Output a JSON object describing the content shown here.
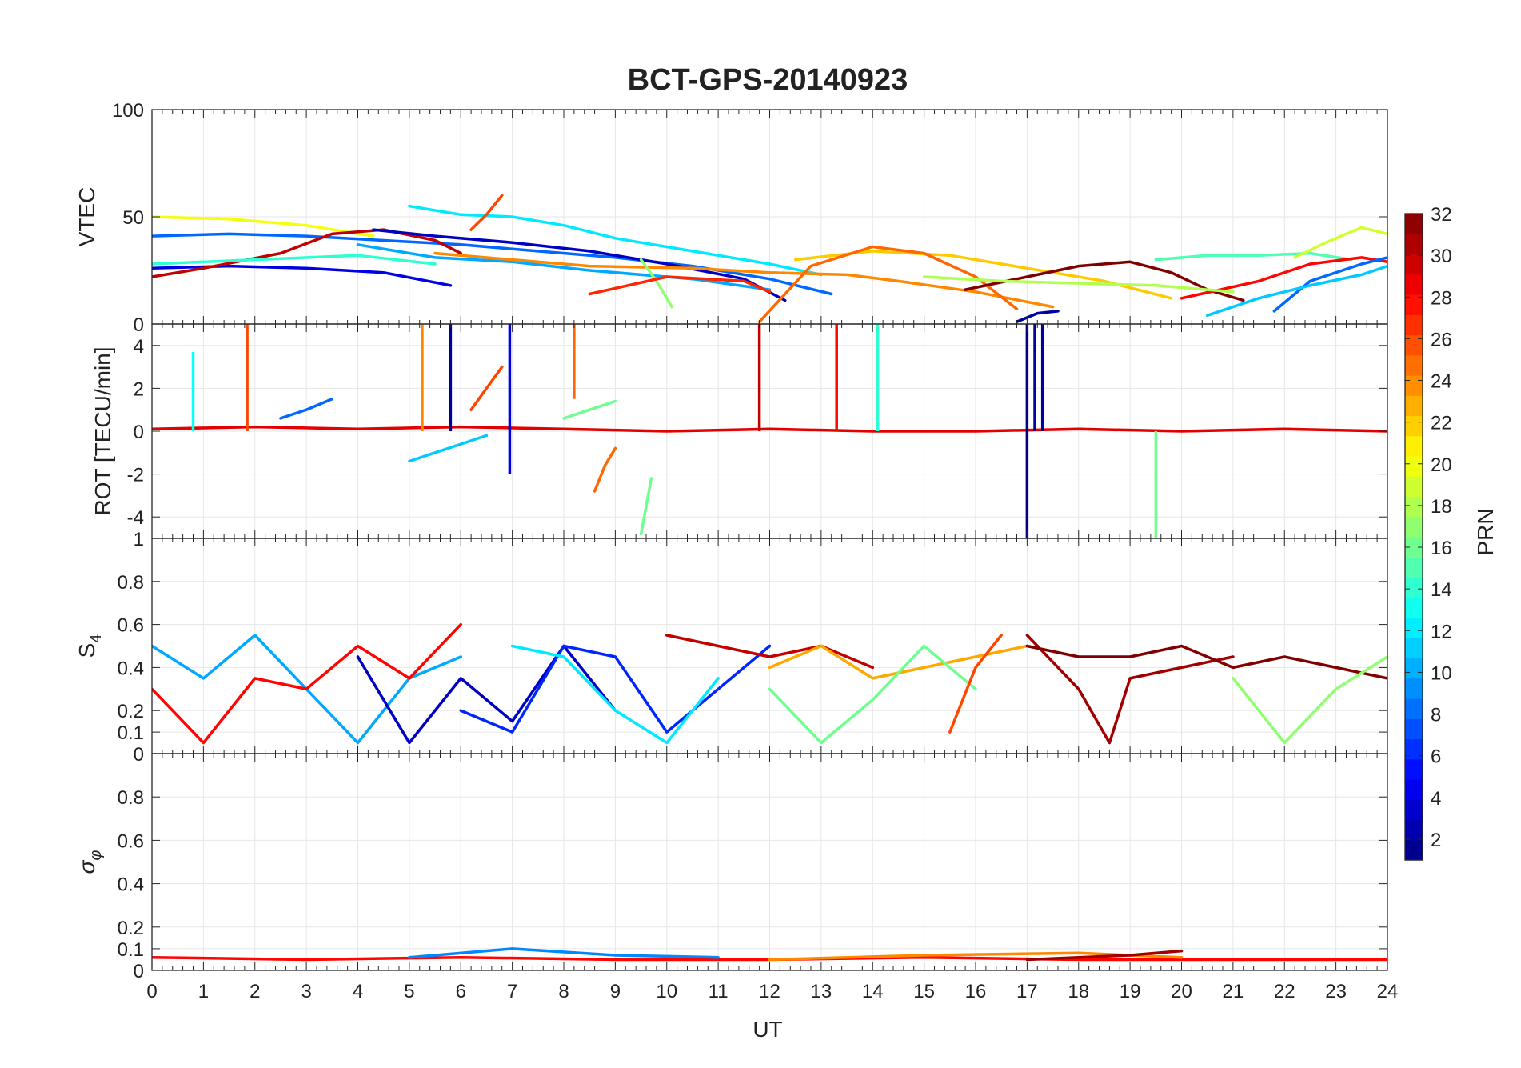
{
  "figure": {
    "title": "BCT-GPS-20140923",
    "xlabel": "UT",
    "x_ticks": [
      0,
      1,
      2,
      3,
      4,
      5,
      6,
      7,
      8,
      9,
      10,
      11,
      12,
      13,
      14,
      15,
      16,
      17,
      18,
      19,
      20,
      21,
      22,
      23,
      24
    ],
    "colorbar": {
      "label": "PRN",
      "ticks": [
        2,
        4,
        6,
        8,
        10,
        12,
        14,
        16,
        18,
        20,
        22,
        24,
        26,
        28,
        30,
        32
      ],
      "range": [
        1,
        32
      ],
      "colormap": "jet"
    }
  },
  "chart_data": [
    {
      "type": "line",
      "panel": "VTEC",
      "ylabel": "VTEC",
      "xlim": [
        0,
        24
      ],
      "ylim": [
        0,
        100
      ],
      "y_ticks": [
        0,
        50,
        100
      ],
      "grid": true,
      "series": [
        {
          "prn": 4,
          "x": [
            0.0,
            1.5,
            3.0,
            4.5,
            5.8
          ],
          "y": [
            26,
            27,
            26,
            24,
            18
          ]
        },
        {
          "prn": 8,
          "x": [
            0.0,
            1.5,
            3.0,
            4.5,
            6.0,
            7.5,
            9.0,
            10.5,
            12.0,
            13.2
          ],
          "y": [
            41,
            42,
            41,
            39,
            37,
            34,
            31,
            27,
            21,
            14
          ]
        },
        {
          "prn": 20,
          "x": [
            0.0,
            1.5,
            3.0,
            4.3
          ],
          "y": [
            50,
            49,
            46,
            41
          ]
        },
        {
          "prn": 12,
          "x": [
            5.0,
            6.0,
            7.0,
            8.0,
            9.0,
            10.5,
            12.0,
            13.0
          ],
          "y": [
            55,
            51,
            50,
            46,
            40,
            34,
            28,
            23
          ]
        },
        {
          "prn": 30,
          "x": [
            0.0,
            1.0,
            2.5,
            3.5,
            4.5,
            5.5,
            6.0
          ],
          "y": [
            22,
            26,
            33,
            42,
            44,
            39,
            33
          ]
        },
        {
          "prn": 26,
          "x": [
            6.2,
            6.5,
            6.8
          ],
          "y": [
            44,
            51,
            60
          ]
        },
        {
          "prn": 3,
          "x": [
            4.3,
            5.5,
            7.0,
            8.5,
            10.0,
            11.5,
            12.3
          ],
          "y": [
            44,
            41,
            38,
            34,
            28,
            21,
            11
          ]
        },
        {
          "prn": 10,
          "x": [
            4.0,
            5.5,
            7.0,
            8.5,
            10.5,
            12.0
          ],
          "y": [
            37,
            31,
            29,
            25,
            21,
            16
          ]
        },
        {
          "prn": 24,
          "x": [
            5.5,
            7.0,
            8.5,
            10.5,
            12.0,
            13.5,
            14.5,
            16.0,
            17.5
          ],
          "y": [
            33,
            30,
            27,
            26,
            24,
            23,
            20,
            15,
            8
          ]
        },
        {
          "prn": 22,
          "x": [
            12.5,
            14.0,
            15.5,
            17.0,
            18.5,
            19.8
          ],
          "y": [
            30,
            34,
            32,
            26,
            20,
            12
          ]
        },
        {
          "prn": 25,
          "x": [
            11.8,
            12.8,
            14.0,
            15.0,
            16.0,
            16.8
          ],
          "y": [
            1,
            27,
            36,
            33,
            22,
            7
          ]
        },
        {
          "prn": 32,
          "x": [
            15.8,
            17.0,
            18.0,
            19.0,
            19.8,
            20.5,
            21.2
          ],
          "y": [
            16,
            22,
            27,
            29,
            24,
            16,
            11
          ]
        },
        {
          "prn": 15,
          "x": [
            19.5,
            20.5,
            21.5,
            22.5,
            23.3
          ],
          "y": [
            30,
            32,
            32,
            33,
            30
          ]
        },
        {
          "prn": 19,
          "x": [
            22.2,
            22.8,
            23.5,
            24.0
          ],
          "y": [
            31,
            38,
            45,
            42
          ]
        },
        {
          "prn": 28,
          "x": [
            20.0,
            21.5,
            22.5,
            23.5,
            24.0
          ],
          "y": [
            12,
            20,
            28,
            31,
            29
          ]
        },
        {
          "prn": 8,
          "x": [
            21.8,
            22.5,
            23.5,
            24.0
          ],
          "y": [
            6,
            20,
            28,
            31
          ]
        },
        {
          "prn": 11,
          "x": [
            20.5,
            21.5,
            22.5,
            23.5,
            24.0
          ],
          "y": [
            4,
            12,
            18,
            23,
            27
          ]
        },
        {
          "prn": 18,
          "x": [
            15.0,
            16.5,
            18.0,
            19.5,
            21.0
          ],
          "y": [
            22,
            20,
            19,
            18,
            15
          ]
        },
        {
          "prn": 2,
          "x": [
            16.8,
            17.2,
            17.6
          ],
          "y": [
            1,
            5,
            6
          ]
        },
        {
          "prn": 17,
          "x": [
            9.5,
            9.8,
            10.1
          ],
          "y": [
            30,
            20,
            8
          ]
        },
        {
          "prn": 14,
          "x": [
            0.0,
            2.0,
            4.0,
            5.5
          ],
          "y": [
            28,
            30,
            32,
            28
          ]
        },
        {
          "prn": 27,
          "x": [
            8.5,
            10.0,
            11.5,
            12.0
          ],
          "y": [
            14,
            22,
            20,
            15
          ]
        }
      ]
    },
    {
      "type": "line",
      "panel": "ROT",
      "ylabel": "ROT [TECU/min]",
      "xlim": [
        0,
        24
      ],
      "ylim": [
        -5,
        5
      ],
      "y_ticks": [
        -4,
        -2,
        0,
        2,
        4
      ],
      "grid": true,
      "spikes": [
        {
          "prn": 26,
          "x": 1.85,
          "y0": 0,
          "y1": 5
        },
        {
          "prn": 13,
          "x": 0.8,
          "y0": 0,
          "y1": 3.7
        },
        {
          "prn": 24,
          "x": 5.25,
          "y0": 0,
          "y1": 5
        },
        {
          "prn": 2,
          "x": 5.8,
          "y0": 0,
          "y1": 5
        },
        {
          "prn": 4,
          "x": 6.95,
          "y0": -2,
          "y1": 5
        },
        {
          "prn": 25,
          "x": 8.2,
          "y0": 1.5,
          "y1": 5
        },
        {
          "prn": 30,
          "x": 11.8,
          "y0": 0,
          "y1": 5
        },
        {
          "prn": 28,
          "x": 13.3,
          "y0": 0,
          "y1": 5
        },
        {
          "prn": 14,
          "x": 14.1,
          "y0": 0,
          "y1": 5
        },
        {
          "prn": 1,
          "x": 17.0,
          "y0": -5,
          "y1": 5
        },
        {
          "prn": 2,
          "x": 17.15,
          "y0": 0,
          "y1": 5
        },
        {
          "prn": 2,
          "x": 17.3,
          "y0": 0,
          "y1": 5
        },
        {
          "prn": 16,
          "x": 19.5,
          "y0": -5,
          "y1": 0
        }
      ],
      "series": [
        {
          "prn": 29,
          "x": [
            0,
            2,
            4,
            6,
            8,
            10,
            12,
            14,
            16,
            18,
            20,
            22,
            24
          ],
          "y": [
            0.1,
            0.2,
            0.1,
            0.2,
            0.1,
            0.0,
            0.1,
            0.0,
            0.0,
            0.1,
            0.0,
            0.1,
            0.0
          ]
        },
        {
          "prn": 8,
          "x": [
            2.5,
            3.0,
            3.5
          ],
          "y": [
            0.6,
            1.0,
            1.5
          ]
        },
        {
          "prn": 11,
          "x": [
            5.0,
            5.5,
            6.0,
            6.5
          ],
          "y": [
            -1.4,
            -1.0,
            -0.6,
            -0.2
          ]
        },
        {
          "prn": 26,
          "x": [
            6.2,
            6.5,
            6.8
          ],
          "y": [
            1.0,
            2.0,
            3.0
          ]
        },
        {
          "prn": 16,
          "x": [
            9.5,
            9.6,
            9.7
          ],
          "y": [
            -4.8,
            -3.5,
            -2.2
          ]
        },
        {
          "prn": 25,
          "x": [
            8.6,
            8.8,
            9.0
          ],
          "y": [
            -2.8,
            -1.6,
            -0.8
          ]
        },
        {
          "prn": 16,
          "x": [
            8.0,
            8.5,
            9.0
          ],
          "y": [
            0.6,
            1.0,
            1.4
          ]
        }
      ]
    },
    {
      "type": "line",
      "panel": "S4",
      "ylabel": "S4",
      "xlim": [
        0,
        24
      ],
      "ylim": [
        0,
        1
      ],
      "y_ticks": [
        0,
        0.1,
        0.2,
        0.4,
        0.6,
        0.8,
        1
      ],
      "grid": true,
      "series": [
        {
          "prn": 10,
          "x": [
            0,
            1,
            2,
            3,
            4,
            5,
            6
          ],
          "y": [
            0.5,
            0.35,
            0.55,
            0.3,
            0.05,
            0.35,
            0.45
          ]
        },
        {
          "prn": 3,
          "x": [
            4,
            5,
            6,
            7,
            8,
            9
          ],
          "y": [
            0.45,
            0.05,
            0.35,
            0.15,
            0.5,
            0.2
          ]
        },
        {
          "prn": 28,
          "x": [
            0,
            1,
            2,
            3,
            4,
            5,
            6
          ],
          "y": [
            0.3,
            0.05,
            0.35,
            0.3,
            0.5,
            0.35,
            0.6
          ]
        },
        {
          "prn": 6,
          "x": [
            6,
            7,
            8,
            9,
            10,
            11,
            12
          ],
          "y": [
            0.2,
            0.1,
            0.5,
            0.45,
            0.1,
            0.3,
            0.5
          ]
        },
        {
          "prn": 12,
          "x": [
            7,
            8,
            9,
            10,
            11
          ],
          "y": [
            0.5,
            0.45,
            0.2,
            0.05,
            0.35
          ]
        },
        {
          "prn": 30,
          "x": [
            10,
            11,
            12,
            13,
            14
          ],
          "y": [
            0.55,
            0.5,
            0.45,
            0.5,
            0.4
          ]
        },
        {
          "prn": 23,
          "x": [
            12,
            13,
            14,
            15,
            16,
            17
          ],
          "y": [
            0.4,
            0.5,
            0.35,
            0.4,
            0.45,
            0.5
          ]
        },
        {
          "prn": 16,
          "x": [
            12,
            13,
            14,
            15,
            16
          ],
          "y": [
            0.3,
            0.05,
            0.25,
            0.5,
            0.3
          ]
        },
        {
          "prn": 31,
          "x": [
            17,
            18,
            18.6,
            19,
            20,
            21
          ],
          "y": [
            0.55,
            0.3,
            0.05,
            0.35,
            0.4,
            0.45
          ]
        },
        {
          "prn": 32,
          "x": [
            17,
            18,
            19,
            20,
            21,
            22,
            23,
            24
          ],
          "y": [
            0.5,
            0.45,
            0.45,
            0.5,
            0.4,
            0.45,
            0.4,
            0.35
          ]
        },
        {
          "prn": 17,
          "x": [
            21,
            22,
            23,
            24
          ],
          "y": [
            0.35,
            0.05,
            0.3,
            0.45
          ]
        },
        {
          "prn": 26,
          "x": [
            15.5,
            16,
            16.5
          ],
          "y": [
            0.1,
            0.4,
            0.55
          ]
        }
      ]
    },
    {
      "type": "line",
      "panel": "sigma_phi",
      "ylabel": "σ_φ",
      "xlim": [
        0,
        24
      ],
      "ylim": [
        0,
        1
      ],
      "y_ticks": [
        0,
        0.1,
        0.2,
        0.4,
        0.6,
        0.8
      ],
      "grid": true,
      "series": [
        {
          "prn": 28,
          "x": [
            0,
            3,
            6,
            9,
            12,
            15,
            18,
            21,
            24
          ],
          "y": [
            0.06,
            0.05,
            0.06,
            0.05,
            0.05,
            0.06,
            0.05,
            0.05,
            0.05
          ]
        },
        {
          "prn": 9,
          "x": [
            5,
            7,
            9,
            11
          ],
          "y": [
            0.06,
            0.1,
            0.07,
            0.06
          ]
        },
        {
          "prn": 24,
          "x": [
            12,
            15,
            18,
            20
          ],
          "y": [
            0.05,
            0.07,
            0.08,
            0.06
          ]
        },
        {
          "prn": 31,
          "x": [
            17,
            18,
            19,
            20
          ],
          "y": [
            0.05,
            0.06,
            0.07,
            0.09
          ]
        }
      ]
    }
  ]
}
